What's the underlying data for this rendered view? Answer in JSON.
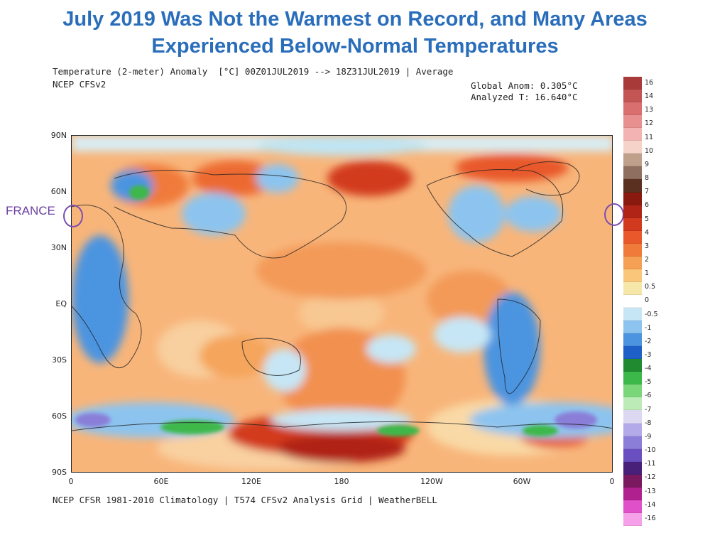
{
  "slide": {
    "title_line1": "July 2019 Was Not the Warmest on Record, and Many Areas",
    "title_line2": "Experienced Below-Normal Temperatures"
  },
  "map": {
    "header_line1": "Temperature (2-meter) Anomaly  [°C] 00Z01JUL2019 --> 18Z31JUL2019 | Average",
    "header_line2": "NCEP CFSv2",
    "global_anom": "Global Anom: 0.305°C",
    "analyzed_t": "Analyzed T: 16.640°C",
    "footer": "NCEP CFSR 1981-2010 Climatology | T574 CFSv2 Analysis Grid | WeatherBELL",
    "lat_labels": [
      "90N",
      "60N",
      "30N",
      "EQ",
      "30S",
      "60S",
      "90S"
    ],
    "lon_labels": [
      "0",
      "60E",
      "120E",
      "180",
      "120W",
      "60W",
      "0"
    ],
    "annotation_label": "FRANCE",
    "annotation_color": "#7b4fb0"
  },
  "colorbar": {
    "labels": [
      "16",
      "14",
      "13",
      "12",
      "11",
      "10",
      "9",
      "8",
      "7",
      "6",
      "5",
      "4",
      "3",
      "2",
      "1",
      "0.5",
      "0",
      "-0.5",
      "-1",
      "-2",
      "-3",
      "-4",
      "-5",
      "-6",
      "-7",
      "-8",
      "-9",
      "-10",
      "-11",
      "-12",
      "-13",
      "-14",
      "-16"
    ],
    "colors": [
      "#a83a3a",
      "#c45555",
      "#d96f6f",
      "#e89090",
      "#f3b3b3",
      "#f6d3c8",
      "#bfa08a",
      "#8f7060",
      "#5a3020",
      "#8a1a10",
      "#b02418",
      "#d23a1f",
      "#e8582a",
      "#f07a3a",
      "#f5a055",
      "#fac77a",
      "#f6e7a8",
      "#ffffff",
      "#c6e6f5",
      "#8cc4ef",
      "#4c94e0",
      "#1f5fc8",
      "#1f8a30",
      "#3cb84a",
      "#7bd67a",
      "#bdebb8",
      "#dcd8f2",
      "#b3aaea",
      "#8a7ed8",
      "#6a4fc0",
      "#48207a",
      "#7a1860",
      "#b0208e",
      "#e050c8",
      "#f5a0e8"
    ]
  }
}
